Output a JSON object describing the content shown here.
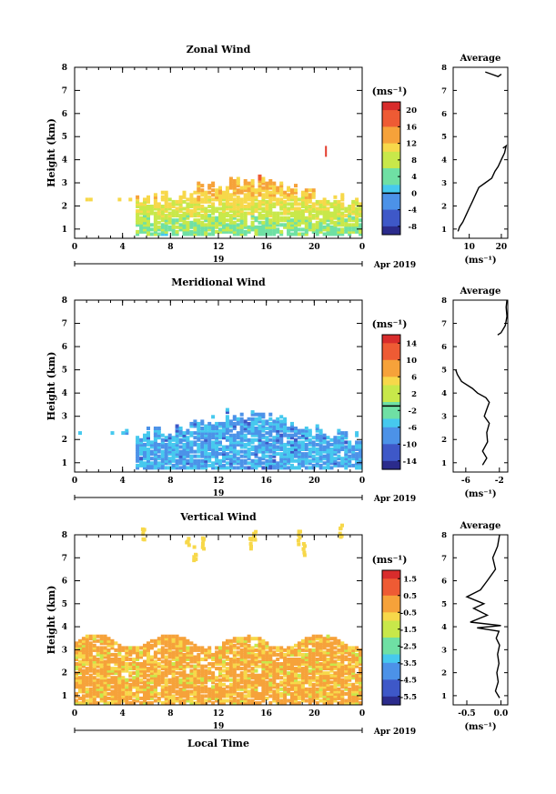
{
  "chart_data": [
    {
      "type": "heatmap",
      "title": "Zonal Wind",
      "xlabel": "",
      "ylabel": "Height (km)",
      "x_ticks": [
        "0",
        "4",
        "8",
        "12",
        "16",
        "20",
        "0"
      ],
      "y_ticks": [
        "1",
        "2",
        "3",
        "4",
        "5",
        "6",
        "7",
        "8"
      ],
      "xlim": [
        0,
        24
      ],
      "ylim": [
        0.6,
        8
      ],
      "date_day": "19",
      "date_month": "Apr 2019",
      "colorbar": {
        "unit": "(ms⁻¹)",
        "labels": [
          "20",
          "16",
          "12",
          "8",
          "4",
          "0",
          "-4",
          "-8"
        ],
        "range": [
          -10,
          22
        ],
        "zero_line": 0
      },
      "profile": {
        "title": "Average",
        "x_ticks": [
          "10",
          "20"
        ],
        "xlim": [
          5,
          22
        ],
        "xlabel": "(ms⁻¹)",
        "points": [
          [
            6.5,
            0.9
          ],
          [
            7,
            1.1
          ],
          [
            8,
            1.3
          ],
          [
            9,
            1.6
          ],
          [
            10,
            1.9
          ],
          [
            11,
            2.2
          ],
          [
            12,
            2.5
          ],
          [
            13,
            2.8
          ],
          [
            15,
            3.0
          ],
          [
            17,
            3.2
          ],
          [
            18,
            3.5
          ],
          [
            19,
            3.7
          ],
          [
            20,
            4.0
          ],
          [
            21,
            4.3
          ],
          [
            21.5,
            4.6
          ],
          [
            20.5,
            4.5
          ]
        ],
        "top_points": [
          [
            15,
            7.8
          ],
          [
            17,
            7.7
          ],
          [
            19,
            7.6
          ],
          [
            20,
            7.7
          ]
        ]
      }
    },
    {
      "type": "heatmap",
      "title": "Meridional Wind",
      "xlabel": "",
      "ylabel": "Height (km)",
      "x_ticks": [
        "0",
        "4",
        "8",
        "12",
        "16",
        "20",
        "0"
      ],
      "y_ticks": [
        "1",
        "2",
        "3",
        "4",
        "5",
        "6",
        "7",
        "8"
      ],
      "xlim": [
        0,
        24
      ],
      "ylim": [
        0.6,
        8
      ],
      "date_day": "19",
      "date_month": "Apr 2019",
      "colorbar": {
        "unit": "(ms⁻¹)",
        "labels": [
          "14",
          "10",
          "6",
          "2",
          "-2",
          "-6",
          "-10",
          "-14"
        ],
        "range": [
          -16,
          18
        ],
        "zero_line": 0
      },
      "profile": {
        "title": "Average",
        "x_ticks": [
          "-6",
          "-2"
        ],
        "xlim": [
          -7.5,
          -1
        ],
        "xlabel": "(ms⁻¹)",
        "points": [
          [
            -4,
            0.9
          ],
          [
            -3.5,
            1.2
          ],
          [
            -4,
            1.5
          ],
          [
            -3.4,
            1.9
          ],
          [
            -3.5,
            2.3
          ],
          [
            -3.2,
            2.7
          ],
          [
            -3.8,
            3.0
          ],
          [
            -3.5,
            3.3
          ],
          [
            -3.2,
            3.6
          ],
          [
            -3.6,
            3.8
          ],
          [
            -4.6,
            4.0
          ],
          [
            -5.2,
            4.2
          ],
          [
            -6.5,
            4.5
          ],
          [
            -7.0,
            4.8
          ],
          [
            -7.2,
            5.0
          ]
        ],
        "top_points": [
          [
            -2.2,
            6.5
          ],
          [
            -1.8,
            6.6
          ],
          [
            -1.3,
            6.9
          ],
          [
            -1.1,
            7.3
          ],
          [
            -1.2,
            7.7
          ],
          [
            -1.1,
            8.0
          ]
        ]
      }
    },
    {
      "type": "heatmap",
      "title": "Vertical Wind",
      "xlabel": "Local Time",
      "ylabel": "Height (km)",
      "x_ticks": [
        "0",
        "4",
        "8",
        "12",
        "16",
        "20",
        "0"
      ],
      "y_ticks": [
        "1",
        "2",
        "3",
        "4",
        "5",
        "6",
        "7",
        "8"
      ],
      "xlim": [
        0,
        24
      ],
      "ylim": [
        0.6,
        8
      ],
      "date_day": "19",
      "date_month": "Apr 2019",
      "colorbar": {
        "unit": "(ms⁻¹)",
        "labels": [
          "1.5",
          "0.5",
          "-0.5",
          "-1.5",
          "-2.5",
          "-3.5",
          "-4.5",
          "-5.5"
        ],
        "range": [
          -6,
          2
        ],
        "zero_line": null
      },
      "profile": {
        "title": "Average",
        "x_ticks": [
          "-0.5",
          "0.0"
        ],
        "xlim": [
          -0.7,
          0.1
        ],
        "xlabel": "(ms⁻¹)",
        "points": [
          [
            -0.02,
            0.9
          ],
          [
            -0.08,
            1.2
          ],
          [
            -0.04,
            1.6
          ],
          [
            -0.06,
            2.0
          ],
          [
            -0.03,
            2.4
          ],
          [
            -0.05,
            2.8
          ],
          [
            -0.02,
            3.2
          ],
          [
            -0.07,
            3.5
          ],
          [
            -0.03,
            3.8
          ],
          [
            -0.35,
            3.95
          ],
          [
            0.0,
            4.05
          ],
          [
            -0.45,
            4.2
          ],
          [
            -0.2,
            4.5
          ],
          [
            -0.4,
            4.8
          ],
          [
            -0.25,
            5.0
          ],
          [
            -0.5,
            5.3
          ],
          [
            -0.3,
            5.6
          ],
          [
            -0.2,
            6.0
          ],
          [
            -0.08,
            6.5
          ],
          [
            -0.12,
            7.0
          ],
          [
            -0.05,
            7.5
          ],
          [
            -0.02,
            8.0
          ]
        ]
      }
    }
  ],
  "colors": {
    "jet": [
      "#2b2b8c",
      "#3e58c8",
      "#4c92e8",
      "#46c9ee",
      "#6fe0a4",
      "#c8e84a",
      "#f7d84a",
      "#f6a23a",
      "#ee5b34",
      "#d82c2c"
    ]
  }
}
